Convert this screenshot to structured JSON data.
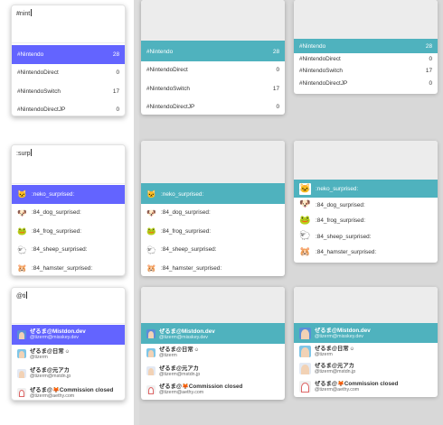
{
  "hashtag": {
    "query": "#nint",
    "items": [
      {
        "tag": "#Nintendo",
        "count": "28"
      },
      {
        "tag": "#NintendoDirect",
        "count": "0"
      },
      {
        "tag": "#NintendoSwitch",
        "count": "17"
      },
      {
        "tag": "#NintendoDirectJP",
        "count": "0"
      }
    ]
  },
  "emoji": {
    "query": ":surp",
    "items": [
      {
        "code": ":neko_surprised:",
        "icon": "neko-emoji",
        "glyph": "🐱"
      },
      {
        "code": ":84_dog_surprised:",
        "icon": "dog-emoji",
        "glyph": "🐶"
      },
      {
        "code": ":84_frog_surprised:",
        "icon": "frog-emoji",
        "glyph": "🐸"
      },
      {
        "code": ":84_sheep_surprised:",
        "icon": "sheep-emoji",
        "glyph": "🐑"
      },
      {
        "code": ":84_hamster_surprised:",
        "icon": "hamster-emoji",
        "glyph": "🐹"
      }
    ]
  },
  "account": {
    "query": "@ti",
    "items": [
      {
        "name": "ぜるま@Mistdon.dev",
        "handle": "@tizerm@misskey.dev",
        "badge": ""
      },
      {
        "name": "ぜるま@日常",
        "handle": "@tizerm",
        "badge": "☺"
      },
      {
        "name": "ぜるま@元アカ",
        "handle": "@tizerm@mstdn.jp",
        "badge": ""
      },
      {
        "name": "ぜるま@🦊Commission closed",
        "handle": "@tizerm@aethy.com",
        "badge": ""
      }
    ]
  },
  "colors": {
    "mastodon_accent": "#6364ff",
    "teal_accent": "#4fb2be"
  }
}
